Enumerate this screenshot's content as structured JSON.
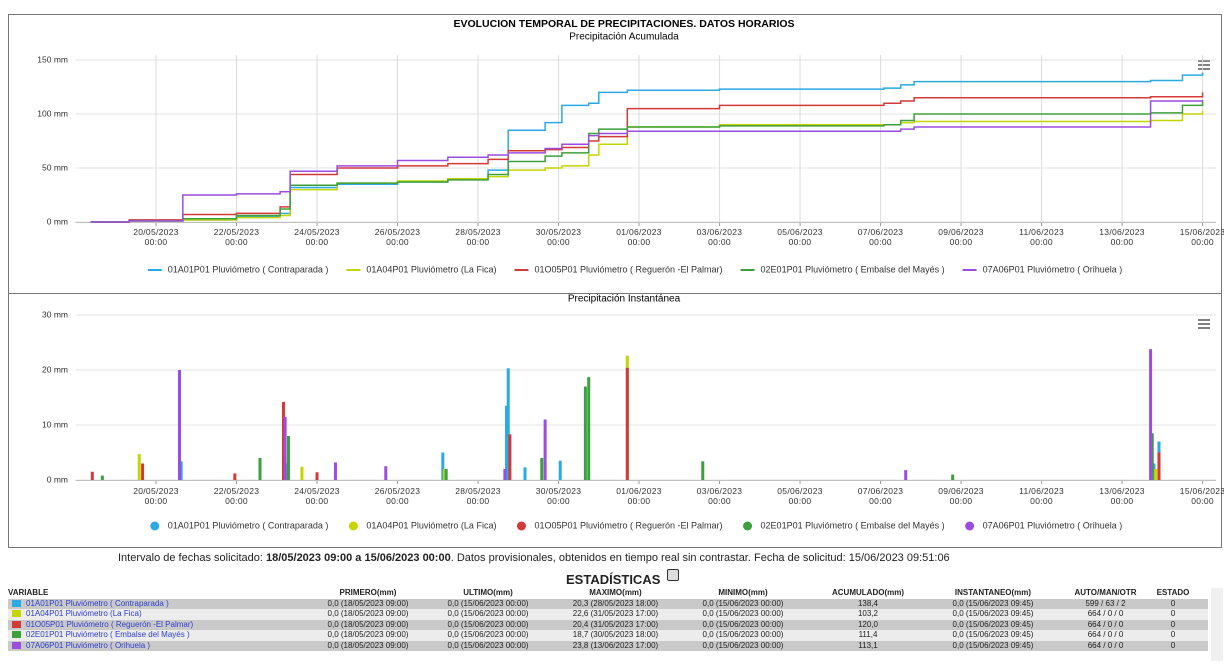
{
  "header": {
    "title": "EVOLUCION TEMPORAL DE PRECIPITACIONES. DATOS HORARIOS"
  },
  "chart_data": [
    {
      "type": "line",
      "step": "after",
      "subtitle": "Precipitación Acumulada",
      "x": [
        "2023-05-18T09:00",
        "2023-05-19T08:00",
        "2023-05-20T16:00",
        "2023-05-22T00:00",
        "2023-05-23T02:00",
        "2023-05-23T08:00",
        "2023-05-24T12:00",
        "2023-05-26T00:00",
        "2023-05-27T06:00",
        "2023-05-28T06:00",
        "2023-05-28T18:00",
        "2023-05-29T16:00",
        "2023-05-30T02:00",
        "2023-05-30T18:00",
        "2023-05-31T00:00",
        "2023-05-31T17:00",
        "2023-06-03T00:00",
        "2023-06-07T02:00",
        "2023-06-07T12:00",
        "2023-06-07T20:00",
        "2023-06-13T17:00",
        "2023-06-14T12:00",
        "2023-06-15T00:00"
      ],
      "series": [
        {
          "name": "01A01P01 Pluviómetro ( Contraparada )",
          "color": "#29aae2",
          "values": [
            0,
            1,
            2,
            5,
            8,
            32,
            35,
            37,
            40,
            48,
            85,
            92,
            108,
            110,
            120,
            122,
            123,
            124,
            127,
            130,
            131,
            136,
            138.4
          ]
        },
        {
          "name": "01A04P01 Pluviómetro (La Fica)",
          "color": "#c6d400",
          "values": [
            0,
            1,
            2,
            4,
            6,
            30,
            36,
            38,
            40,
            42,
            48,
            50,
            52,
            62,
            72,
            88,
            90,
            90,
            92,
            93,
            94,
            100,
            103.2
          ]
        },
        {
          "name": "01O05P01 Pluviómetro ( Reguerón -El Palmar)",
          "color": "#d23a3a",
          "values": [
            0,
            2,
            7,
            8,
            14,
            44,
            50,
            52,
            54,
            58,
            66,
            67,
            69,
            75,
            79,
            105,
            108,
            110,
            112,
            115,
            116,
            116,
            120
          ]
        },
        {
          "name": "02E01P01 Pluviómetro ( Embalse del Mayés )",
          "color": "#3ca03c",
          "values": [
            0,
            1,
            3,
            6,
            12,
            34,
            36,
            37,
            39,
            44,
            56,
            61,
            64,
            82,
            86,
            88,
            89,
            90,
            94,
            100,
            101,
            108,
            111.4
          ]
        },
        {
          "name": "07A06P01 Pluviómetro ( Orihuela )",
          "color": "#9b4de0",
          "values": [
            0,
            1,
            25,
            26,
            28,
            47,
            52,
            57,
            60,
            62,
            64,
            68,
            72,
            80,
            82,
            84,
            84,
            84,
            86,
            88,
            112,
            112,
            113.1
          ]
        }
      ],
      "xlim": [
        "2023-05-18T00:00",
        "2023-06-15T08:00"
      ],
      "xticks": [
        {
          "value": "2023-05-20T00:00",
          "label": "20/05/2023 00:00"
        },
        {
          "value": "2023-05-22T00:00",
          "label": "22/05/2023 00:00"
        },
        {
          "value": "2023-05-24T00:00",
          "label": "24/05/2023 00:00"
        },
        {
          "value": "2023-05-26T00:00",
          "label": "26/05/2023 00:00"
        },
        {
          "value": "2023-05-28T00:00",
          "label": "28/05/2023 00:00"
        },
        {
          "value": "2023-05-30T00:00",
          "label": "30/05/2023 00:00"
        },
        {
          "value": "2023-06-01T00:00",
          "label": "01/06/2023 00:00"
        },
        {
          "value": "2023-06-03T00:00",
          "label": "03/06/2023 00:00"
        },
        {
          "value": "2023-06-05T00:00",
          "label": "05/06/2023 00:00"
        },
        {
          "value": "2023-06-07T00:00",
          "label": "07/06/2023 00:00"
        },
        {
          "value": "2023-06-09T00:00",
          "label": "09/06/2023 00:00"
        },
        {
          "value": "2023-06-11T00:00",
          "label": "11/06/2023 00:00"
        },
        {
          "value": "2023-06-13T00:00",
          "label": "13/06/2023 00:00"
        },
        {
          "value": "2023-06-15T00:00",
          "label": "15/06/2023 00:00"
        }
      ],
      "ylim": [
        0,
        150
      ],
      "yticks": [
        {
          "value": 0,
          "label": "0 mm"
        },
        {
          "value": 50,
          "label": "50 mm"
        },
        {
          "value": 100,
          "label": "100 mm"
        },
        {
          "value": 150,
          "label": "150 mm"
        }
      ],
      "grid": true,
      "xgrid": true,
      "legend": "bottom"
    },
    {
      "type": "bar",
      "subtitle": "Precipitación Instantánea",
      "series": [
        {
          "name": "01A01P01 Pluviómetro ( Contraparada )",
          "color": "#29aae2",
          "x": [
            "2023-05-20T15:00",
            "2023-05-23T06:00",
            "2023-05-27T03:00",
            "2023-05-28T17:00",
            "2023-05-28T18:00",
            "2023-05-29T04:00",
            "2023-05-30T01:00",
            "2023-06-13T19:00",
            "2023-06-13T22:00"
          ],
          "values": [
            3.4,
            3,
            5,
            13.5,
            20.3,
            2.3,
            3.5,
            3,
            7
          ]
        },
        {
          "name": "01A04P01 Pluviómetro (La Fica)",
          "color": "#c6d400",
          "x": [
            "2023-05-19T14:00",
            "2023-05-23T15:00",
            "2023-05-27T04:00",
            "2023-05-31T17:00",
            "2023-06-13T20:00"
          ],
          "values": [
            4.7,
            2.4,
            2,
            22.6,
            2
          ]
        },
        {
          "name": "01O05P01 Pluviómetro ( Reguerón -El Palmar)",
          "color": "#d23a3a",
          "x": [
            "2023-05-18T10:00",
            "2023-05-19T16:00",
            "2023-05-21T23:00",
            "2023-05-23T04:00",
            "2023-05-24T00:00",
            "2023-05-28T19:00",
            "2023-05-31T17:00",
            "2023-06-13T22:00"
          ],
          "values": [
            1.5,
            3,
            1.2,
            14.2,
            1.4,
            8.3,
            20.4,
            5
          ]
        },
        {
          "name": "02E01P01 Pluviómetro ( Embalse del Mayés )",
          "color": "#3ca03c",
          "x": [
            "2023-05-18T16:00",
            "2023-05-22T14:00",
            "2023-05-23T07:00",
            "2023-05-27T05:00",
            "2023-05-29T14:00",
            "2023-05-30T16:00",
            "2023-05-30T18:00",
            "2023-06-02T14:00",
            "2023-06-08T19:00",
            "2023-06-13T18:00"
          ],
          "values": [
            0.8,
            4,
            8,
            2,
            4,
            17,
            18.7,
            3.4,
            1,
            8.5
          ]
        },
        {
          "name": "07A06P01 Pluviómetro ( Orihuela )",
          "color": "#9b4de0",
          "x": [
            "2023-05-20T14:00",
            "2023-05-23T05:00",
            "2023-05-24T11:00",
            "2023-05-25T17:00",
            "2023-05-28T16:00",
            "2023-05-29T16:00",
            "2023-06-07T15:00",
            "2023-06-13T17:00"
          ],
          "values": [
            20,
            11.5,
            3.2,
            2.5,
            2,
            11,
            1.8,
            23.8
          ]
        }
      ],
      "xlim": [
        "2023-05-18T00:00",
        "2023-06-15T08:00"
      ],
      "xticks": [
        {
          "value": "2023-05-20T00:00",
          "label": "20/05/2023 00:00"
        },
        {
          "value": "2023-05-22T00:00",
          "label": "22/05/2023 00:00"
        },
        {
          "value": "2023-05-24T00:00",
          "label": "24/05/2023 00:00"
        },
        {
          "value": "2023-05-26T00:00",
          "label": "26/05/2023 00:00"
        },
        {
          "value": "2023-05-28T00:00",
          "label": "28/05/2023 00:00"
        },
        {
          "value": "2023-05-30T00:00",
          "label": "30/05/2023 00:00"
        },
        {
          "value": "2023-06-01T00:00",
          "label": "01/06/2023 00:00"
        },
        {
          "value": "2023-06-03T00:00",
          "label": "03/06/2023 00:00"
        },
        {
          "value": "2023-06-05T00:00",
          "label": "05/06/2023 00:00"
        },
        {
          "value": "2023-06-07T00:00",
          "label": "07/06/2023 00:00"
        },
        {
          "value": "2023-06-09T00:00",
          "label": "09/06/2023 00:00"
        },
        {
          "value": "2023-06-11T00:00",
          "label": "11/06/2023 00:00"
        },
        {
          "value": "2023-06-13T00:00",
          "label": "13/06/2023 00:00"
        },
        {
          "value": "2023-06-15T00:00",
          "label": "15/06/2023 00:00"
        }
      ],
      "ylim": [
        0,
        30
      ],
      "yticks": [
        {
          "value": 0,
          "label": "0 mm"
        },
        {
          "value": 10,
          "label": "10 mm"
        },
        {
          "value": 20,
          "label": "20 mm"
        },
        {
          "value": 30,
          "label": "30 mm"
        }
      ],
      "grid": true,
      "xgrid": false,
      "legend": "bottom"
    }
  ],
  "info": {
    "label": "Intervalo de fechas solicitado:",
    "range": "18/05/2023 09:00 a 15/06/2023 00:00",
    "note": ". Datos provisionales, obtenidos en tiempo real sin contrastar. Fecha de solicitud: 15/06/2023 09:51:06"
  },
  "table": {
    "title": "ESTADÍSTICAS",
    "columns": [
      "VARIABLE",
      "PRIMERO(mm)",
      "ULTIMO(mm)",
      "MAXIMO(mm)",
      "MINIMO(mm)",
      "ACUMULADO(mm)",
      "INSTANTANEO(mm)",
      "AUTO/MAN/OTR",
      "ESTADO"
    ],
    "row_colors": [
      "#29aae2",
      "#c6d400",
      "#d23a3a",
      "#3ca03c",
      "#9b4de0"
    ],
    "rows": [
      [
        "01A01P01 Pluviómetro ( Contraparada )",
        "0,0 (18/05/2023 09:00)",
        "0,0 (15/06/2023 00:00)",
        "20,3 (28/05/2023 18:00)",
        "0,0 (15/06/2023 00:00)",
        "138,4",
        "0,0 (15/06/2023 09:45)",
        "599 / 63 / 2",
        "0"
      ],
      [
        "01A04P01 Pluviómetro (La Fica)",
        "0,0 (18/05/2023 09:00)",
        "0,0 (15/06/2023 00:00)",
        "22,6 (31/05/2023 17:00)",
        "0,0 (15/06/2023 00:00)",
        "103,2",
        "0,0 (15/06/2023 09:45)",
        "664 / 0 / 0",
        "0"
      ],
      [
        "01O05P01 Pluviómetro ( Reguerón -El Palmar)",
        "0,0 (18/05/2023 09:00)",
        "0,0 (15/06/2023 00:00)",
        "20,4 (31/05/2023 17:00)",
        "0,0 (15/06/2023 00:00)",
        "120,0",
        "0,0 (15/06/2023 09:45)",
        "664 / 0 / 0",
        "0"
      ],
      [
        "02E01P01 Pluviómetro ( Embalse del Mayés )",
        "0,0 (18/05/2023 09:00)",
        "0,0 (15/06/2023 00:00)",
        "18,7 (30/05/2023 18:00)",
        "0,0 (15/06/2023 00:00)",
        "111,4",
        "0,0 (15/06/2023 09:45)",
        "664 / 0 / 0",
        "0"
      ],
      [
        "07A06P01 Pluviómetro ( Orihuela )",
        "0,0 (18/05/2023 09:00)",
        "0,0 (15/06/2023 00:00)",
        "23,8 (13/06/2023 17:00)",
        "0,0 (15/06/2023 00:00)",
        "113,1",
        "0,0 (15/06/2023 09:45)",
        "664 / 0 / 0",
        "0"
      ]
    ]
  }
}
